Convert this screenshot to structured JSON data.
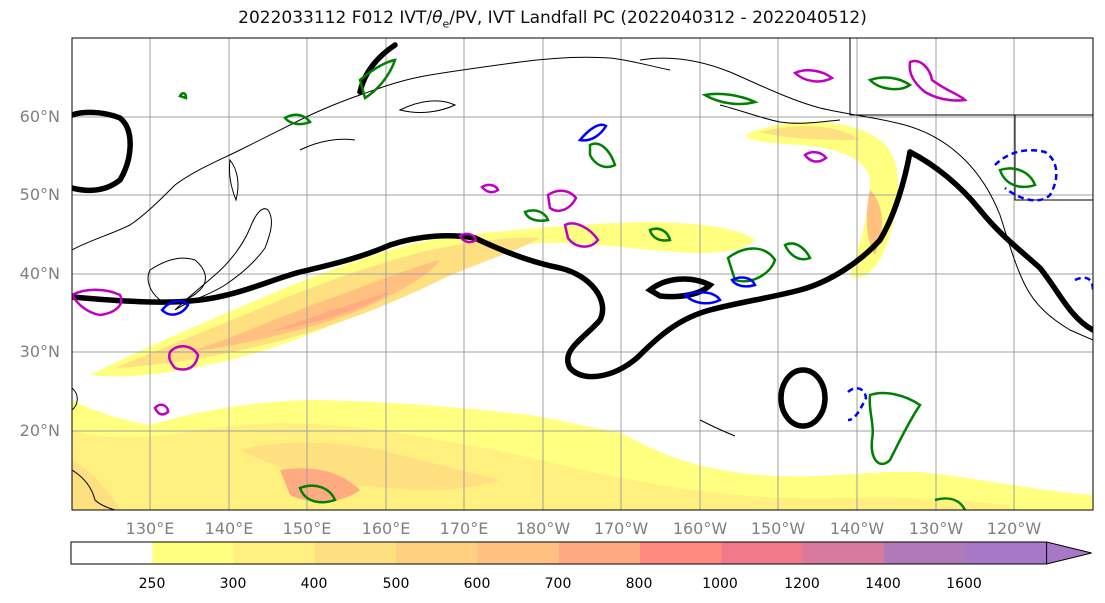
{
  "title": {
    "prefix": "2022033112 F012 IVT/",
    "theta": "θ",
    "theta_sub": "e",
    "suffix": "/PV, IVT Landfall PC (2022040312 - 2022040512)"
  },
  "map": {
    "lat_labels": [
      "60°N",
      "50°N",
      "40°N",
      "30°N",
      "20°N"
    ],
    "lon_labels": [
      "130°E",
      "140°E",
      "150°E",
      "160°E",
      "170°E",
      "180°W",
      "170°W",
      "160°W",
      "150°W",
      "140°W",
      "130°W",
      "120°W"
    ],
    "label_color": "#808080"
  },
  "colorbar": {
    "tick_labels": [
      "250",
      "300",
      "400",
      "500",
      "600",
      "700",
      "800",
      "1000",
      "1200",
      "1400",
      "1600"
    ],
    "colors": [
      "#ffffff",
      "#ffff80",
      "#fff080",
      "#ffe080",
      "#ffd080",
      "#ffc080",
      "#ffaa80",
      "#ff8a80",
      "#f07a8a",
      "#d87aa0",
      "#b07ab8",
      "#a878c8"
    ]
  },
  "contour_colors": {
    "heavy": "#000000",
    "green": "#008000",
    "blue": "#0000ff",
    "magenta": "#c000c0"
  }
}
